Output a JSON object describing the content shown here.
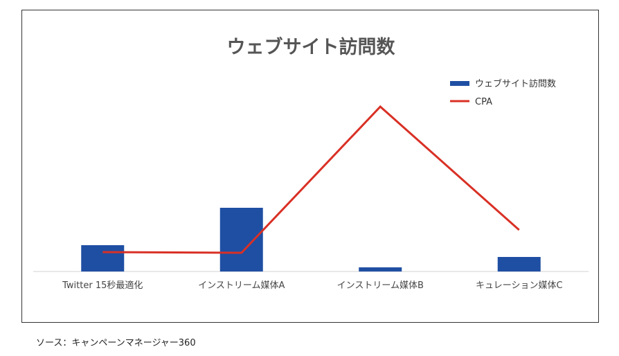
{
  "chart_data": {
    "type": "bar",
    "title": "ウェブサイト訪問数",
    "categories": [
      "Twitter 15秒最適化",
      "インストリーム媒体A",
      "インストリーム媒体B",
      "キュレーション媒体C"
    ],
    "series": [
      {
        "name": "ウェブサイト訪問数",
        "type": "bar",
        "color": "#1f4fa3",
        "values": [
          38,
          92,
          6,
          21
        ]
      },
      {
        "name": "CPA",
        "type": "line",
        "color": "#d93025",
        "values": [
          28,
          27,
          238,
          60
        ]
      }
    ],
    "xlabel": "",
    "ylabel": "",
    "ylim": [
      0,
      250
    ],
    "grid": false,
    "legend_position": "top-right"
  },
  "footer": {
    "source": "ソース：キャンペーンマネージャー360"
  }
}
